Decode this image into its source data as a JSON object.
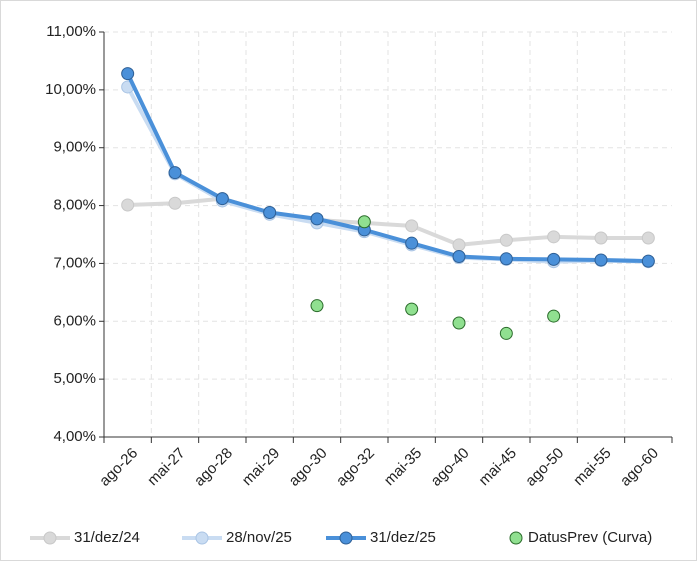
{
  "chart_data": {
    "type": "line",
    "categories": [
      "ago-26",
      "mai-27",
      "ago-28",
      "mai-29",
      "ago-30",
      "ago-32",
      "mai-35",
      "ago-40",
      "mai-45",
      "ago-50",
      "mai-55",
      "ago-60"
    ],
    "ylim": [
      4,
      11
    ],
    "yticks": [
      {
        "value": 4,
        "label": "4,00%"
      },
      {
        "value": 5,
        "label": "5,00%"
      },
      {
        "value": 6,
        "label": "6,00%"
      },
      {
        "value": 7,
        "label": "7,00%"
      },
      {
        "value": 8,
        "label": "8,00%"
      },
      {
        "value": 9,
        "label": "9,00%"
      },
      {
        "value": 10,
        "label": "10,00%"
      },
      {
        "value": 11,
        "label": "11,00%"
      }
    ],
    "grid": true,
    "legend": "bottom",
    "series": [
      {
        "name": "31/dez/24",
        "color": "#d9d9d9",
        "mode": "lines+markers",
        "values": [
          8.01,
          8.04,
          8.12,
          7.88,
          7.75,
          7.7,
          7.65,
          7.32,
          7.4,
          7.46,
          7.44,
          7.44
        ]
      },
      {
        "name": "28/nov/25",
        "color": "#c9dcf2",
        "mode": "lines+markers",
        "values": [
          10.05,
          8.55,
          8.08,
          7.85,
          7.7,
          7.55,
          7.32,
          7.1,
          7.07,
          7.03,
          7.05,
          7.03
        ]
      },
      {
        "name": "31/dez/25",
        "color": "#4a90d9",
        "mode": "lines+markers",
        "values": [
          10.28,
          8.57,
          8.12,
          7.88,
          7.77,
          7.58,
          7.35,
          7.12,
          7.08,
          7.07,
          7.06,
          7.04
        ]
      },
      {
        "name": "DatusPrev (Curva)",
        "color": "#90e090",
        "mode": "markers",
        "values": [
          null,
          null,
          null,
          null,
          6.27,
          7.72,
          6.21,
          5.97,
          5.79,
          6.09,
          null,
          null
        ]
      }
    ]
  }
}
